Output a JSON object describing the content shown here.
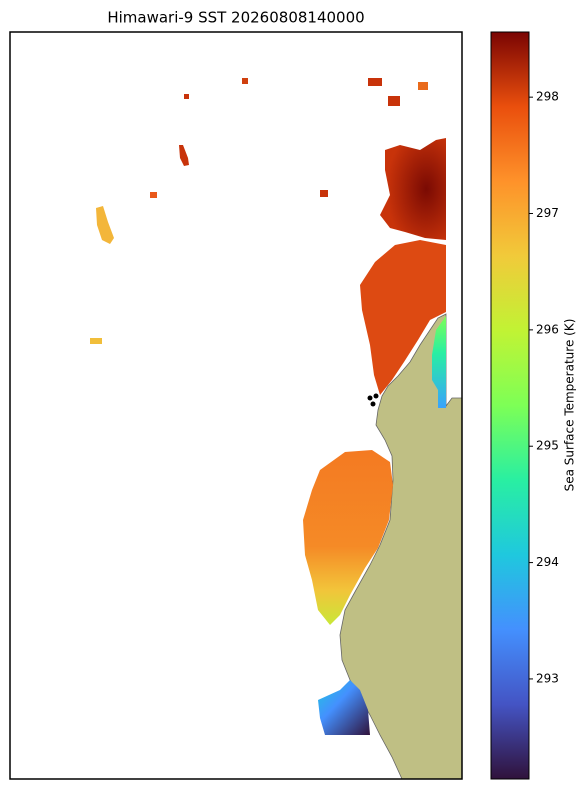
{
  "title": "Himawari-9 SST 20260808140000",
  "colorbar": {
    "label": "Sea Surface Temperature (K)",
    "range": [
      292.14,
      298.56
    ],
    "ticks": [
      293,
      294,
      295,
      296,
      297,
      298
    ]
  }
}
